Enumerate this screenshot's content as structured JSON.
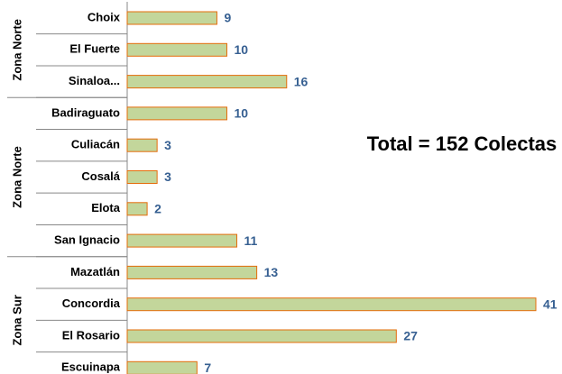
{
  "chart_data": {
    "type": "bar",
    "orientation": "horizontal",
    "categories": [
      "Choix",
      "El Fuerte",
      "Sinaloa...",
      "Badiraguato",
      "Culiacán",
      "Cosalá",
      "Elota",
      "San Ignacio",
      "Mazatlán",
      "Concordia",
      "El Rosario",
      "Escuinapa"
    ],
    "values": [
      9,
      10,
      16,
      10,
      3,
      3,
      2,
      11,
      13,
      41,
      27,
      7
    ],
    "groups": [
      {
        "name": "Zona Norte",
        "size": 3
      },
      {
        "name": "Zona Norte",
        "size": 5
      },
      {
        "name": "Zona Sur",
        "size": 4
      }
    ],
    "color": "#c3d69b",
    "edge_color": "#e46c0a",
    "annotation": "Total = 152 Colectas"
  }
}
